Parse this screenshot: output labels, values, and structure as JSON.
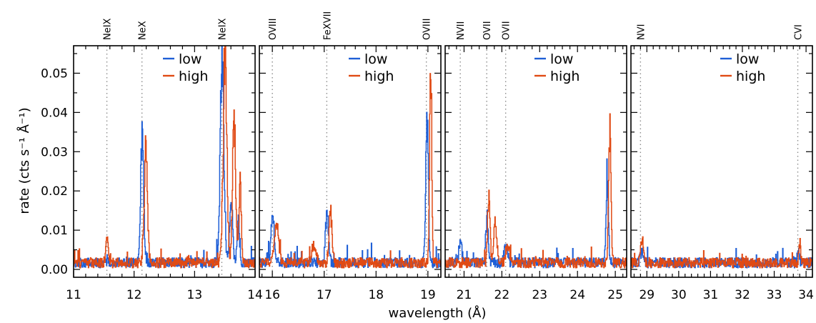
{
  "chart_data": {
    "type": "line",
    "xlabel": "wavelength (Å)",
    "ylabel": "rate (cts s⁻¹ Å⁻¹)",
    "ylim": [
      -0.002,
      0.057
    ],
    "yticks": [
      "0.00",
      "0.01",
      "0.02",
      "0.03",
      "0.04",
      "0.05"
    ],
    "grid": false,
    "legend_position": "top-right",
    "series_names": [
      "low",
      "high"
    ],
    "colors": {
      "low": "#1f5fd6",
      "high": "#e04a14",
      "ref_line": "#8c8c8c"
    },
    "panels": [
      {
        "xlim": [
          11,
          14
        ],
        "xticks": [
          "11",
          "12",
          "13",
          "14"
        ],
        "lines": [
          {
            "label": "NeIX",
            "x": 11.55
          },
          {
            "label": "NeX",
            "x": 12.13
          },
          {
            "label": "NeIX",
            "x": 13.45
          }
        ],
        "low_peaks": [
          [
            12.13,
            0.032,
            0.025
          ],
          [
            13.45,
            0.05,
            0.03
          ],
          [
            13.6,
            0.016,
            0.025
          ],
          [
            13.72,
            0.01,
            0.02
          ]
        ],
        "high_peaks": [
          [
            11.55,
            0.006,
            0.02
          ],
          [
            12.19,
            0.027,
            0.028
          ],
          [
            13.5,
            0.052,
            0.03
          ],
          [
            13.65,
            0.037,
            0.025
          ],
          [
            13.75,
            0.02,
            0.02
          ]
        ]
      },
      {
        "xlim": [
          15.75,
          19.25
        ],
        "xticks": [
          "16",
          "17",
          "18",
          "19"
        ],
        "lines": [
          {
            "label": "OVIII",
            "x": 16.0
          },
          {
            "label": "FeXVII",
            "x": 17.05
          },
          {
            "label": "OVIII",
            "x": 18.97
          }
        ],
        "low_peaks": [
          [
            16.0,
            0.012,
            0.03
          ],
          [
            17.05,
            0.012,
            0.03
          ],
          [
            18.98,
            0.037,
            0.025
          ]
        ],
        "high_peaks": [
          [
            16.08,
            0.01,
            0.04
          ],
          [
            16.8,
            0.005,
            0.04
          ],
          [
            17.12,
            0.012,
            0.03
          ],
          [
            19.05,
            0.053,
            0.02
          ]
        ]
      },
      {
        "xlim": [
          20.5,
          25.3
        ],
        "xticks": [
          "21",
          "22",
          "23",
          "24",
          "25"
        ],
        "lines": [
          {
            "label": "NVII",
            "x": 20.9
          },
          {
            "label": "OVII",
            "x": 21.6
          },
          {
            "label": "OVII",
            "x": 22.1
          }
        ],
        "low_peaks": [
          [
            20.9,
            0.006,
            0.04
          ],
          [
            21.6,
            0.012,
            0.03
          ],
          [
            22.1,
            0.005,
            0.04
          ],
          [
            24.78,
            0.022,
            0.03
          ]
        ],
        "high_peaks": [
          [
            21.65,
            0.017,
            0.03
          ],
          [
            21.82,
            0.01,
            0.04
          ],
          [
            22.15,
            0.004,
            0.05
          ],
          [
            24.85,
            0.033,
            0.03
          ]
        ]
      },
      {
        "xlim": [
          28.5,
          34.2
        ],
        "xticks": [
          "29",
          "30",
          "31",
          "32",
          "33",
          "34"
        ],
        "lines": [
          {
            "label": "NVI",
            "x": 28.8
          },
          {
            "label": "CVI",
            "x": 33.74
          }
        ],
        "low_peaks": [
          [
            28.85,
            0.003,
            0.05
          ],
          [
            33.75,
            0.004,
            0.03
          ]
        ],
        "high_peaks": [
          [
            28.85,
            0.006,
            0.05
          ],
          [
            33.8,
            0.005,
            0.03
          ]
        ]
      }
    ]
  }
}
